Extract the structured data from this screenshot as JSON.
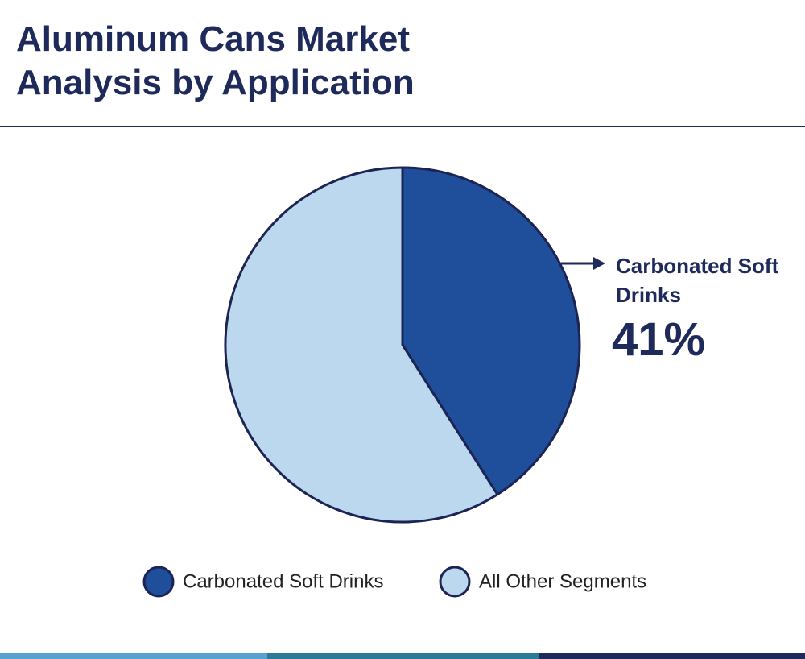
{
  "chart_data": {
    "type": "pie",
    "title": "Aluminum Cans Market Analysis by Application",
    "categories": [
      "Carbonated Soft Drinks",
      "All Other Segments"
    ],
    "values": [
      41,
      59
    ],
    "value_labels": [
      "41%",
      null
    ],
    "colors": [
      "#1f4e9a",
      "#bcd8ef"
    ],
    "legend": "bottom"
  }
}
